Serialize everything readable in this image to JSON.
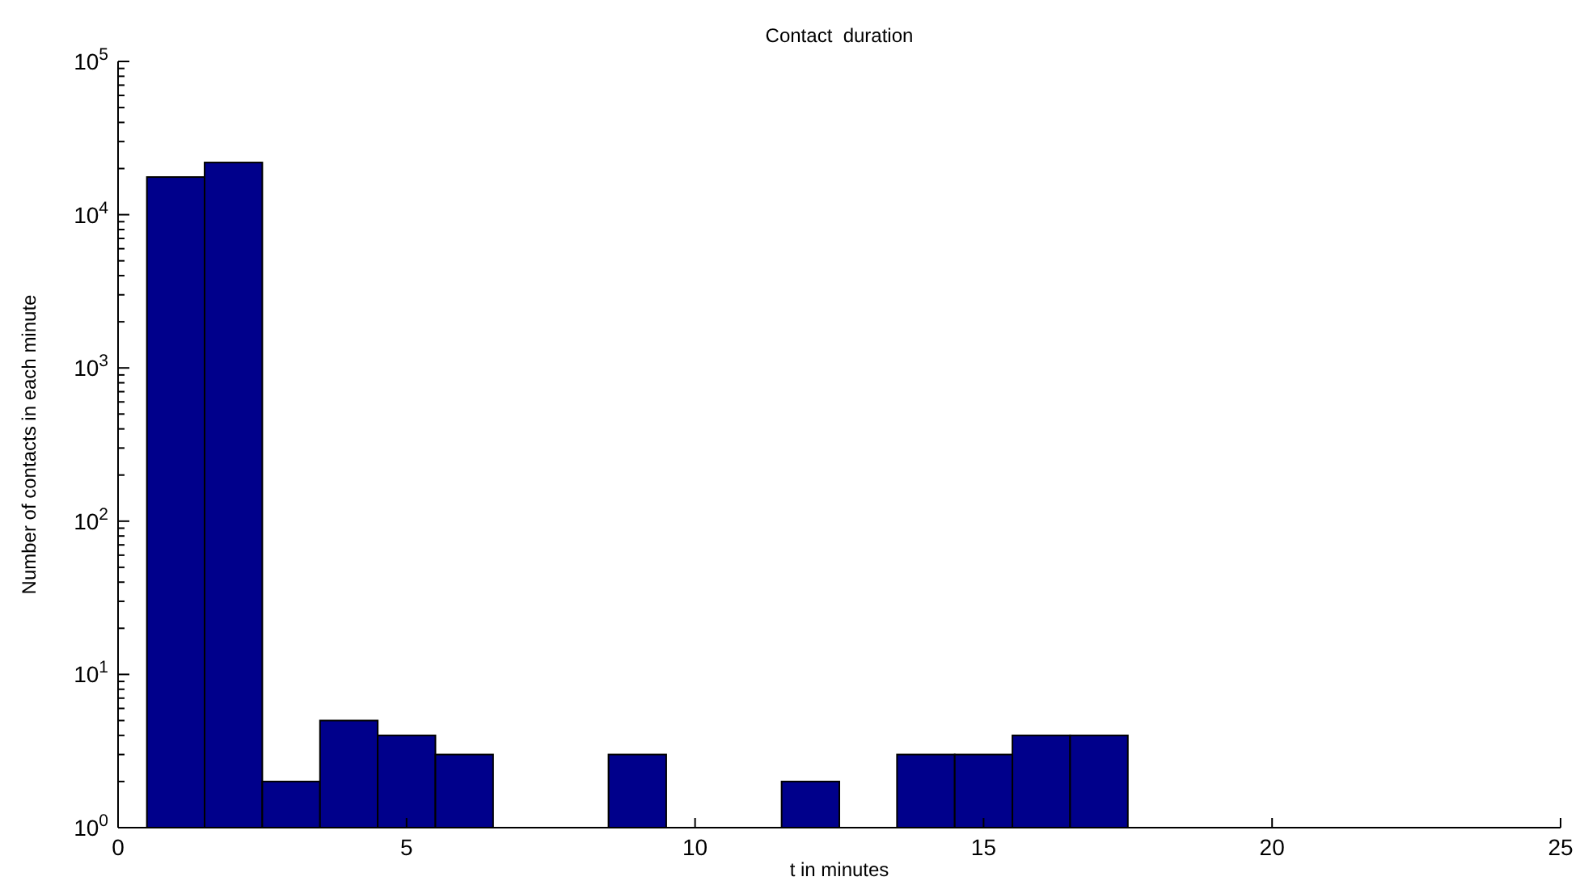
{
  "chart_data": {
    "type": "bar",
    "title": "Contact  duration",
    "xlabel": "t in minutes",
    "ylabel": "Number of contacts in each minute",
    "x": [
      1,
      2,
      3,
      4,
      5,
      6,
      9,
      12,
      14,
      15,
      16,
      17,
      19,
      21
    ],
    "values": [
      17600,
      21900,
      2,
      5,
      4,
      3,
      3,
      2,
      3,
      3,
      4,
      4,
      1,
      1
    ],
    "color": "#00008b",
    "log": "y",
    "xlim": [
      0,
      25
    ],
    "xticks": [
      0,
      5,
      10,
      15,
      20,
      25
    ],
    "ylim": [
      1,
      100000
    ],
    "yticks": [
      {
        "value": 1,
        "label": "10$^{0}$"
      },
      {
        "value": 10,
        "label": "10$^{1}$"
      },
      {
        "value": 100,
        "label": "10$^{2}$"
      },
      {
        "value": 1000,
        "label": "10$^{3}$"
      },
      {
        "value": 10000,
        "label": "10$^{4}$"
      },
      {
        "value": 100000,
        "label": "10$^{5}$"
      }
    ],
    "grid": false
  }
}
